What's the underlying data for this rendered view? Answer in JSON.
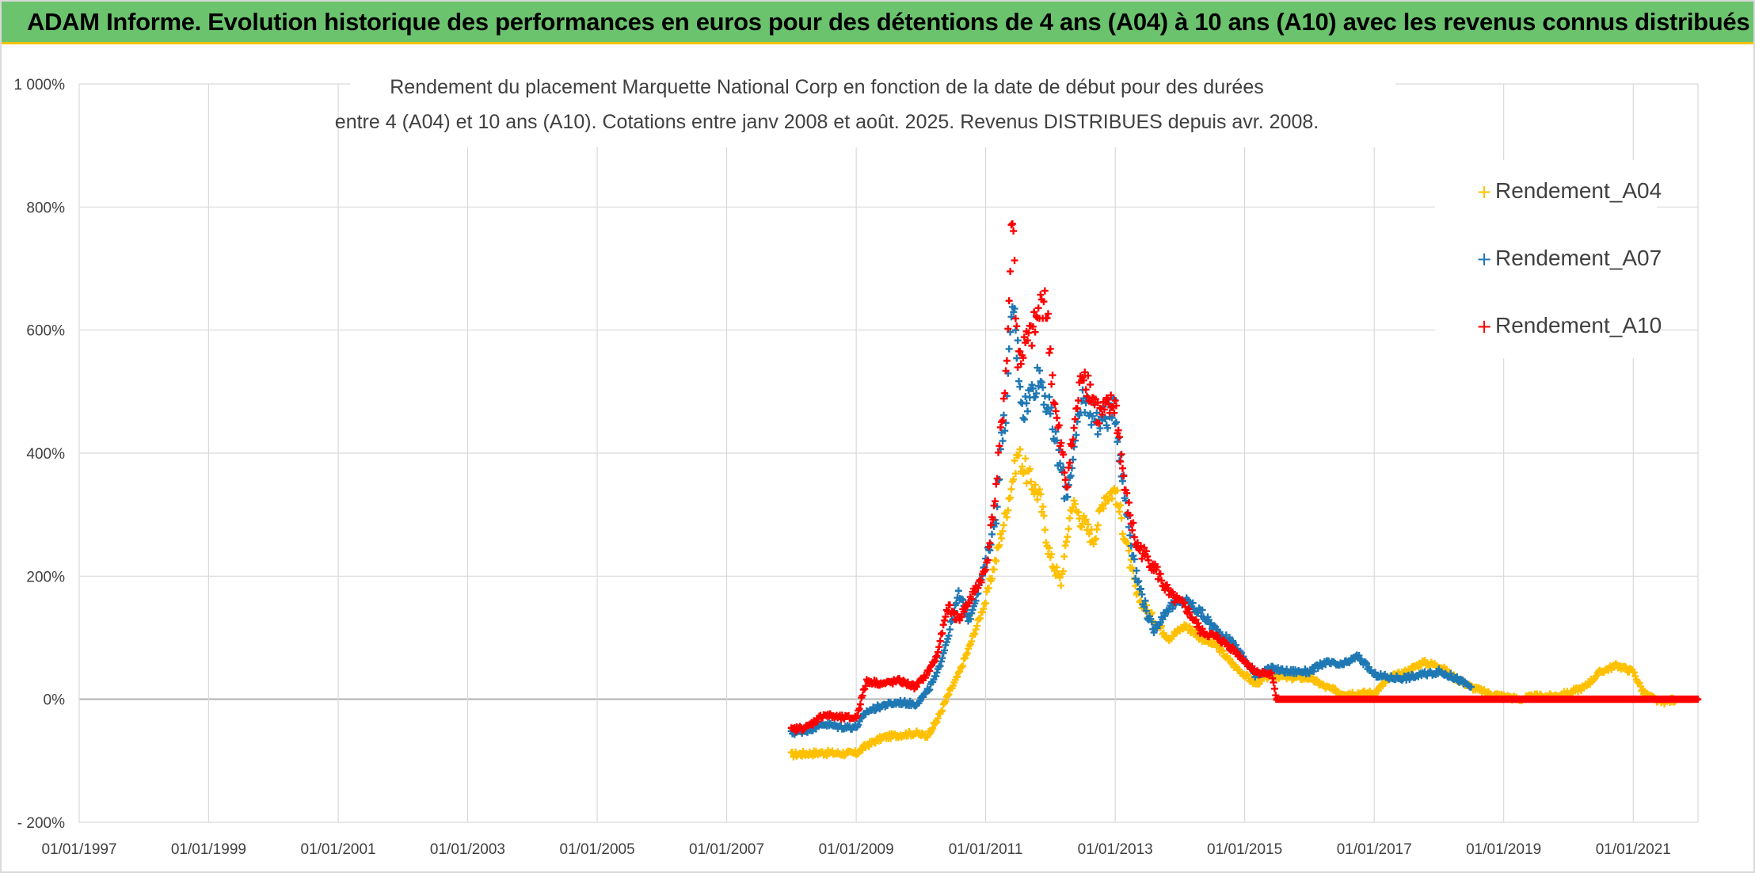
{
  "banner": {
    "title": "ADAM Informe. Evolution historique des performances en euros pour des détentions de 4 ans (A04) à 10 ans (A10) avec les revenus connus distribués"
  },
  "colors": {
    "banner_bg": "#6cc36e",
    "banner_accent": "#f2c200",
    "A04": "#ffc000",
    "A07": "#1f78b4",
    "A10": "#ff0000",
    "grid": "#d9d9d9",
    "zero_line": "#bfbfbf"
  },
  "chart_data": {
    "type": "scatter",
    "title_lines": [
      "Rendement du placement Marquette National Corp en fonction de la date de début pour des durées",
      "entre 4 (A04) et 10 ans (A10). Cotations entre janv 2008 et août. 2025. Revenus DISTRIBUES depuis avr. 2008."
    ],
    "x_tick_labels": [
      "01/01/1997",
      "01/01/1999",
      "01/01/2001",
      "01/01/2003",
      "01/01/2005",
      "01/01/2007",
      "01/01/2009",
      "01/01/2011",
      "01/01/2013",
      "01/01/2015",
      "01/01/2017",
      "01/01/2019",
      "01/01/2021"
    ],
    "y_tick_labels": [
      "- 200%",
      "0%",
      "200%",
      "400%",
      "600%",
      "800%",
      "1 000%"
    ],
    "ylim": [
      -200,
      1000
    ],
    "xlim": [
      "1997-01-01",
      "2022-01-01"
    ],
    "grid": true,
    "marker": "+",
    "legend_position": "top-right",
    "series": [
      {
        "name": "Rendement_A04",
        "color_key": "A04",
        "points": [
          [
            "2008-01-01",
            -90
          ],
          [
            "2008-04-01",
            -88
          ],
          [
            "2008-07-01",
            -87
          ],
          [
            "2008-10-01",
            -88
          ],
          [
            "2009-01-01",
            -88
          ],
          [
            "2009-03-01",
            -75
          ],
          [
            "2009-06-01",
            -62
          ],
          [
            "2009-09-01",
            -58
          ],
          [
            "2009-12-01",
            -55
          ],
          [
            "2010-02-01",
            -60
          ],
          [
            "2010-04-01",
            -35
          ],
          [
            "2010-06-01",
            5
          ],
          [
            "2010-08-01",
            40
          ],
          [
            "2010-10-01",
            85
          ],
          [
            "2011-01-01",
            160
          ],
          [
            "2011-03-01",
            230
          ],
          [
            "2011-05-01",
            310
          ],
          [
            "2011-07-01",
            400
          ],
          [
            "2011-09-01",
            360
          ],
          [
            "2011-11-01",
            330
          ],
          [
            "2012-01-01",
            230
          ],
          [
            "2012-03-01",
            190
          ],
          [
            "2012-05-01",
            320
          ],
          [
            "2012-07-01",
            290
          ],
          [
            "2012-09-01",
            260
          ],
          [
            "2012-11-01",
            330
          ],
          [
            "2013-01-01",
            340
          ],
          [
            "2013-03-01",
            260
          ],
          [
            "2013-05-01",
            170
          ],
          [
            "2013-08-01",
            130
          ],
          [
            "2013-11-01",
            100
          ],
          [
            "2014-02-01",
            120
          ],
          [
            "2014-05-01",
            100
          ],
          [
            "2014-08-01",
            85
          ],
          [
            "2014-11-01",
            55
          ],
          [
            "2015-03-01",
            25
          ],
          [
            "2015-06-01",
            40
          ],
          [
            "2015-09-01",
            35
          ],
          [
            "2016-01-01",
            35
          ],
          [
            "2016-04-01",
            20
          ],
          [
            "2016-07-01",
            10
          ],
          [
            "2016-10-01",
            10
          ],
          [
            "2017-01-01",
            10
          ],
          [
            "2017-04-01",
            35
          ],
          [
            "2017-07-01",
            45
          ],
          [
            "2017-10-01",
            60
          ],
          [
            "2018-01-01",
            55
          ],
          [
            "2018-04-01",
            35
          ],
          [
            "2018-07-01",
            20
          ],
          [
            "2018-10-01",
            10
          ],
          [
            "2019-01-01",
            5
          ],
          [
            "2019-04-01",
            0
          ],
          [
            "2019-07-01",
            5
          ],
          [
            "2019-10-01",
            5
          ],
          [
            "2020-01-01",
            10
          ],
          [
            "2020-04-01",
            20
          ],
          [
            "2020-07-01",
            45
          ],
          [
            "2020-10-01",
            55
          ],
          [
            "2021-01-01",
            45
          ],
          [
            "2021-03-01",
            10
          ],
          [
            "2021-06-01",
            -5
          ],
          [
            "2021-09-01",
            0
          ],
          [
            "2021-12-01",
            0
          ]
        ]
      },
      {
        "name": "Rendement_A07",
        "color_key": "A07",
        "points": [
          [
            "2008-01-01",
            -55
          ],
          [
            "2008-04-01",
            -50
          ],
          [
            "2008-07-01",
            -40
          ],
          [
            "2008-10-01",
            -45
          ],
          [
            "2009-01-01",
            -45
          ],
          [
            "2009-03-01",
            -20
          ],
          [
            "2009-06-01",
            -10
          ],
          [
            "2009-09-01",
            -5
          ],
          [
            "2009-12-01",
            -8
          ],
          [
            "2010-02-01",
            10
          ],
          [
            "2010-04-01",
            40
          ],
          [
            "2010-06-01",
            100
          ],
          [
            "2010-08-01",
            170
          ],
          [
            "2010-10-01",
            130
          ],
          [
            "2011-01-01",
            220
          ],
          [
            "2011-03-01",
            300
          ],
          [
            "2011-04-01",
            420
          ],
          [
            "2011-05-01",
            480
          ],
          [
            "2011-06-01",
            650
          ],
          [
            "2011-08-01",
            470
          ],
          [
            "2011-11-01",
            530
          ],
          [
            "2012-01-01",
            460
          ],
          [
            "2012-04-01",
            330
          ],
          [
            "2012-07-01",
            490
          ],
          [
            "2012-10-01",
            450
          ],
          [
            "2013-01-01",
            470
          ],
          [
            "2013-03-01",
            320
          ],
          [
            "2013-05-01",
            200
          ],
          [
            "2013-08-01",
            110
          ],
          [
            "2013-11-01",
            150
          ],
          [
            "2014-02-01",
            160
          ],
          [
            "2014-05-01",
            140
          ],
          [
            "2014-08-01",
            110
          ],
          [
            "2014-11-01",
            90
          ],
          [
            "2015-03-01",
            40
          ],
          [
            "2015-06-01",
            50
          ],
          [
            "2015-09-01",
            45
          ],
          [
            "2016-01-01",
            45
          ],
          [
            "2016-04-01",
            60
          ],
          [
            "2016-07-01",
            55
          ],
          [
            "2016-10-01",
            70
          ],
          [
            "2017-01-01",
            40
          ],
          [
            "2017-04-01",
            35
          ],
          [
            "2017-07-01",
            35
          ],
          [
            "2017-10-01",
            40
          ],
          [
            "2018-01-01",
            45
          ],
          [
            "2018-04-01",
            35
          ],
          [
            "2018-07-01",
            20
          ]
        ]
      },
      {
        "name": "Rendement_A10",
        "color_key": "A10",
        "points": [
          [
            "2008-01-01",
            -50
          ],
          [
            "2008-04-01",
            -45
          ],
          [
            "2008-07-01",
            -25
          ],
          [
            "2008-10-01",
            -30
          ],
          [
            "2009-01-01",
            -30
          ],
          [
            "2009-03-01",
            30
          ],
          [
            "2009-06-01",
            25
          ],
          [
            "2009-09-01",
            30
          ],
          [
            "2009-12-01",
            20
          ],
          [
            "2010-02-01",
            40
          ],
          [
            "2010-04-01",
            70
          ],
          [
            "2010-06-01",
            150
          ],
          [
            "2010-08-01",
            130
          ],
          [
            "2010-10-01",
            160
          ],
          [
            "2011-01-01",
            210
          ],
          [
            "2011-03-01",
            340
          ],
          [
            "2011-04-01",
            450
          ],
          [
            "2011-05-01",
            550
          ],
          [
            "2011-06-01",
            800
          ],
          [
            "2011-07-01",
            550
          ],
          [
            "2011-10-01",
            600
          ],
          [
            "2011-12-01",
            660
          ],
          [
            "2012-02-01",
            460
          ],
          [
            "2012-04-01",
            350
          ],
          [
            "2012-07-01",
            540
          ],
          [
            "2012-10-01",
            460
          ],
          [
            "2013-01-01",
            480
          ],
          [
            "2013-03-01",
            330
          ],
          [
            "2013-05-01",
            250
          ],
          [
            "2013-08-01",
            220
          ],
          [
            "2013-11-01",
            170
          ],
          [
            "2014-02-01",
            150
          ],
          [
            "2014-05-01",
            110
          ],
          [
            "2014-08-01",
            100
          ],
          [
            "2014-11-01",
            80
          ],
          [
            "2015-03-01",
            45
          ],
          [
            "2015-06-01",
            40
          ],
          [
            "2015-07-01",
            0
          ],
          [
            "2016-01-01",
            0
          ],
          [
            "2017-01-01",
            0
          ],
          [
            "2018-01-01",
            0
          ],
          [
            "2019-01-01",
            0
          ],
          [
            "2020-01-01",
            0
          ],
          [
            "2021-01-01",
            0
          ],
          [
            "2021-12-31",
            0
          ]
        ]
      }
    ]
  }
}
